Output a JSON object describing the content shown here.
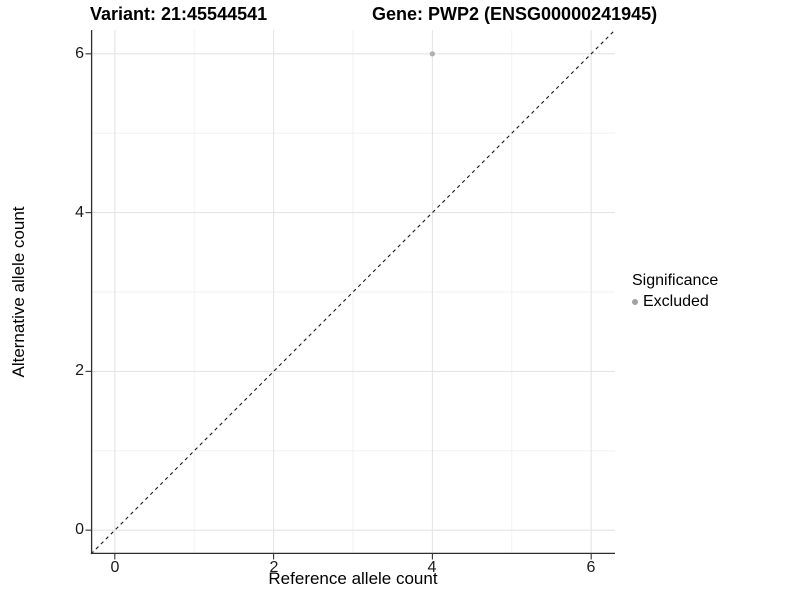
{
  "figure": {
    "title_variant": "Variant: 21:45544541",
    "title_gene": "Gene: PWP2 (ENSG00000241945)"
  },
  "axes": {
    "x_label": "Reference allele count",
    "y_label": "Alternative allele count",
    "x_tick_labels": [
      "0",
      "2",
      "4",
      "6"
    ],
    "y_tick_labels": [
      "0",
      "2",
      "4",
      "6"
    ]
  },
  "legend": {
    "title": "Significance",
    "items": [
      {
        "label": "Excluded",
        "color": "#a3a3a3"
      }
    ]
  },
  "chart_data": {
    "type": "scatter",
    "title": "Variant: 21:45544541 / Gene: PWP2 (ENSG00000241945)",
    "xlabel": "Reference allele count",
    "ylabel": "Alternative allele count",
    "xlim": [
      -0.3,
      6.3
    ],
    "ylim": [
      -0.3,
      6.3
    ],
    "x_major_ticks": [
      0,
      2,
      4,
      6
    ],
    "y_major_ticks": [
      0,
      2,
      4,
      6
    ],
    "x_minor_ticks": [
      1,
      3,
      5
    ],
    "y_minor_ticks": [
      1,
      3,
      5
    ],
    "series": [
      {
        "name": "Excluded",
        "color": "#aeaeae",
        "points": [
          {
            "x": 4,
            "y": 6
          }
        ]
      }
    ],
    "reference_line": {
      "kind": "abline",
      "slope": 1,
      "intercept": 0,
      "style": "dashed",
      "color": "#1a1a1a"
    },
    "grid": {
      "major_color": "#e4e4e4",
      "minor_color": "#f1f1f1"
    },
    "axis_line_color": "#2e2e2e",
    "tick_mark_color": "#333333",
    "point_radius": 2.6,
    "legend_position": "right",
    "legend_title": "Significance"
  }
}
